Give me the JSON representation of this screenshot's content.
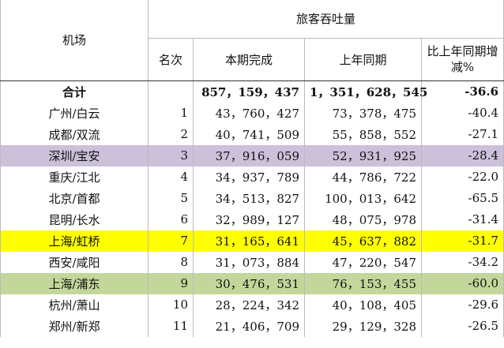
{
  "header": {
    "airport": "机场",
    "group": "旅客吞吐量",
    "rank": "名次",
    "current": "本期完成",
    "last": "上年同期",
    "change": "比上年同期增减%"
  },
  "total": {
    "label": "合计",
    "current": "857，159，437",
    "last": "1，351，628，545",
    "change": "-36.6"
  },
  "rows": [
    {
      "airport": "广州/白云",
      "rank": "1",
      "current": "43，760，427",
      "last": "73，378，475",
      "change": "-40.4"
    },
    {
      "airport": "成都/双流",
      "rank": "2",
      "current": "40，741，509",
      "last": "55，858，552",
      "change": "-27.1"
    },
    {
      "airport": "深圳/宝安",
      "rank": "3",
      "current": "37，916，059",
      "last": "52，931，925",
      "change": "-28.4",
      "highlight": "#ccc0da"
    },
    {
      "airport": "重庆/江北",
      "rank": "4",
      "current": "34，937，789",
      "last": "44，786，722",
      "change": "-22.0"
    },
    {
      "airport": "北京/首都",
      "rank": "5",
      "current": "34，513，827",
      "last": "100，013，642",
      "change": "-65.5"
    },
    {
      "airport": "昆明/长水",
      "rank": "6",
      "current": "32，989，127",
      "last": "48，075，978",
      "change": "-31.4"
    },
    {
      "airport": "上海/虹桥",
      "rank": "7",
      "current": "31，165，641",
      "last": "45，637，882",
      "change": "-31.7",
      "highlight": "#ffff00"
    },
    {
      "airport": "西安/咸阳",
      "rank": "8",
      "current": "31，073，884",
      "last": "47，220，547",
      "change": "-34.2"
    },
    {
      "airport": "上海/浦东",
      "rank": "9",
      "current": "30，476，531",
      "last": "76，153，455",
      "change": "-60.0",
      "highlight": "#c4d79b"
    },
    {
      "airport": "杭州/萧山",
      "rank": "10",
      "current": "28，224，342",
      "last": "40，108，405",
      "change": "-29.6"
    },
    {
      "airport": "郑州/新郑",
      "rank": "11",
      "current": "21，406，709",
      "last": "29，129，328",
      "change": "-26.5"
    }
  ]
}
